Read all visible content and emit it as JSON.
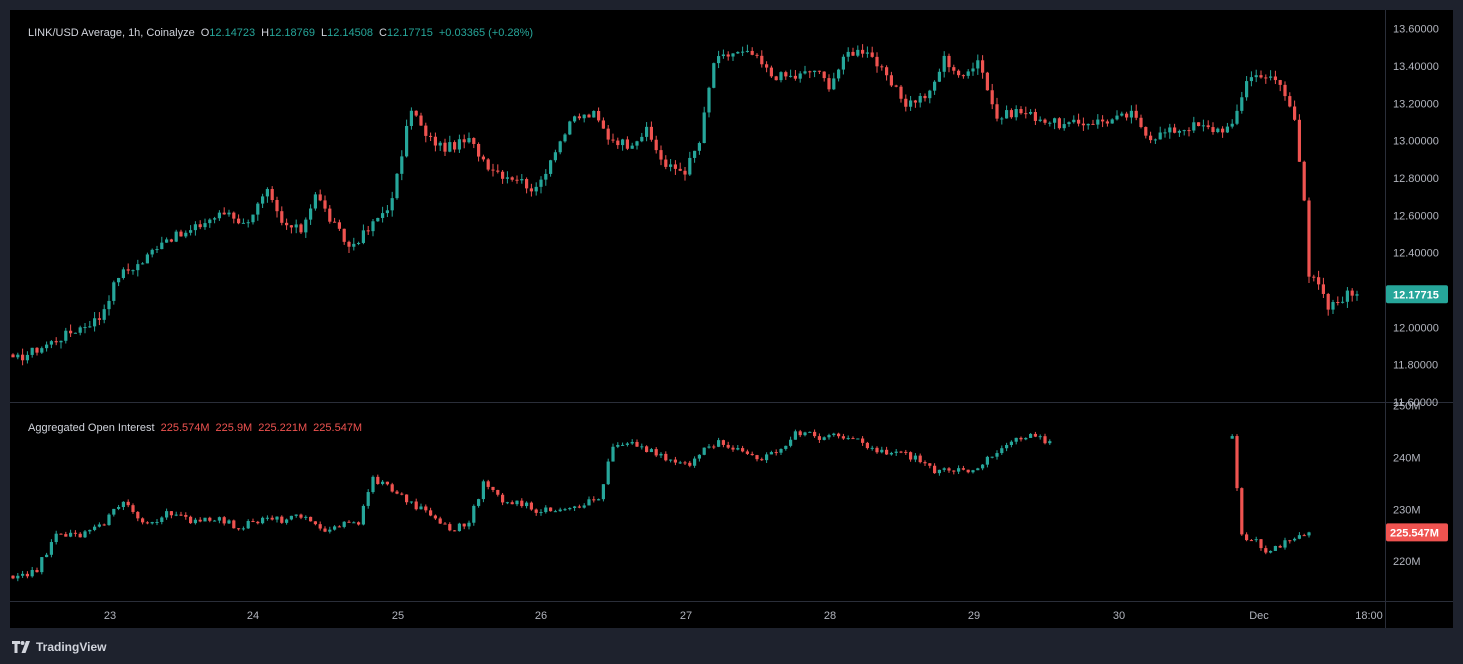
{
  "colors": {
    "up": "#26a69a",
    "down": "#ef5350",
    "text": "#d1d4dc",
    "axis_text": "#b2b5be",
    "border": "#2a2e39",
    "background": "#000000",
    "last_price_bg": "#26a69a",
    "last_oi_bg": "#ef5350"
  },
  "price_legend": {
    "title": "LINK/USD Average, 1h, Coinalyze",
    "open_key": "O",
    "open": "12.14723",
    "high_key": "H",
    "high": "12.18769",
    "low_key": "L",
    "low": "12.14508",
    "close_key": "C",
    "close": "12.17715",
    "change": "+0.03365 (+0.28%)"
  },
  "oi_legend": {
    "title": "Aggregated Open Interest",
    "v1": "225.574M",
    "v2": "225.9M",
    "v3": "225.221M",
    "v4": "225.547M"
  },
  "footer": {
    "brand": "TradingView"
  },
  "chart_data": [
    {
      "type": "candlestick",
      "title": "LINK/USD Average, 1h, Coinalyze",
      "interval": "1h",
      "x_ticks": [
        "23",
        "24",
        "25",
        "26",
        "27",
        "28",
        "29",
        "30",
        "Dec",
        "18:00"
      ],
      "y_ticks": [
        "13.60000",
        "13.40000",
        "13.20000",
        "13.00000",
        "12.80000",
        "12.60000",
        "12.40000",
        "12.20000",
        "12.00000",
        "11.80000",
        "11.60000"
      ],
      "ylim": [
        11.6,
        13.7
      ],
      "last_value_label": "12.17715",
      "x_start": "22 06:00",
      "bar_interval_hours": 1,
      "anchors_close": [
        [
          0,
          11.82
        ],
        [
          8,
          11.92
        ],
        [
          14,
          12.0
        ],
        [
          18,
          12.05
        ],
        [
          22,
          12.28
        ],
        [
          27,
          12.35
        ],
        [
          31,
          12.47
        ],
        [
          36,
          12.5
        ],
        [
          41,
          12.58
        ],
        [
          45,
          12.62
        ],
        [
          48,
          12.55
        ],
        [
          53,
          12.72
        ],
        [
          56,
          12.55
        ],
        [
          60,
          12.52
        ],
        [
          63,
          12.72
        ],
        [
          66,
          12.58
        ],
        [
          70,
          12.43
        ],
        [
          74,
          12.52
        ],
        [
          79,
          12.68
        ],
        [
          83,
          13.18
        ],
        [
          86,
          13.02
        ],
        [
          90,
          12.96
        ],
        [
          95,
          13.0
        ],
        [
          99,
          12.87
        ],
        [
          102,
          12.82
        ],
        [
          105,
          12.8
        ],
        [
          109,
          12.73
        ],
        [
          113,
          12.96
        ],
        [
          117,
          13.12
        ],
        [
          121,
          13.14
        ],
        [
          124,
          13.02
        ],
        [
          128,
          12.98
        ],
        [
          132,
          13.05
        ],
        [
          136,
          12.86
        ],
        [
          140,
          12.84
        ],
        [
          143,
          12.99
        ],
        [
          146,
          13.42
        ],
        [
          150,
          13.47
        ],
        [
          154,
          13.46
        ],
        [
          158,
          13.35
        ],
        [
          163,
          13.34
        ],
        [
          167,
          13.38
        ],
        [
          170,
          13.3
        ],
        [
          174,
          13.47
        ],
        [
          178,
          13.49
        ],
        [
          182,
          13.33
        ],
        [
          186,
          13.2
        ],
        [
          191,
          13.25
        ],
        [
          194,
          13.44
        ],
        [
          198,
          13.33
        ],
        [
          201,
          13.45
        ],
        [
          205,
          13.12
        ],
        [
          209,
          13.16
        ],
        [
          214,
          13.12
        ],
        [
          219,
          13.08
        ],
        [
          224,
          13.1
        ],
        [
          229,
          13.11
        ],
        [
          233,
          13.14
        ],
        [
          237,
          13.02
        ],
        [
          241,
          13.05
        ],
        [
          246,
          13.08
        ],
        [
          250,
          13.06
        ],
        [
          254,
          13.07
        ],
        [
          257,
          13.33
        ],
        [
          260,
          13.36
        ],
        [
          264,
          13.3
        ],
        [
          267,
          13.12
        ],
        [
          269,
          12.7
        ],
        [
          270,
          12.28
        ],
        [
          272,
          12.22
        ],
        [
          274,
          12.1
        ],
        [
          276,
          12.14
        ],
        [
          278,
          12.18
        ],
        [
          279,
          12.18
        ],
        [
          280,
          12.17715
        ]
      ]
    },
    {
      "type": "candlestick",
      "title": "Aggregated Open Interest",
      "interval": "1h",
      "y_ticks": [
        "250M",
        "240M",
        "230M",
        "220M"
      ],
      "ylim": [
        212.5,
        250.5
      ],
      "last_value_label": "225.547M",
      "x_start": "22 06:00",
      "bar_interval_hours": 1,
      "anchors_close": [
        [
          0,
          216
        ],
        [
          5,
          218.5
        ],
        [
          9,
          225
        ],
        [
          14,
          225
        ],
        [
          18,
          226.5
        ],
        [
          23,
          232
        ],
        [
          27,
          227
        ],
        [
          32,
          229
        ],
        [
          37,
          228
        ],
        [
          42,
          228.5
        ],
        [
          47,
          226.5
        ],
        [
          52,
          228
        ],
        [
          56,
          228
        ],
        [
          60,
          228.5
        ],
        [
          64,
          226
        ],
        [
          68,
          227
        ],
        [
          72,
          227.5
        ],
        [
          75,
          236
        ],
        [
          79,
          234
        ],
        [
          83,
          231
        ],
        [
          87,
          229
        ],
        [
          91,
          226
        ],
        [
          95,
          227.5
        ],
        [
          98,
          235
        ],
        [
          102,
          232
        ],
        [
          106,
          231
        ],
        [
          110,
          229.5
        ],
        [
          114,
          230.5
        ],
        [
          118,
          231
        ],
        [
          122,
          232
        ],
        [
          125,
          242
        ],
        [
          130,
          242.5
        ],
        [
          134,
          240.5
        ],
        [
          138,
          239
        ],
        [
          141,
          238.5
        ],
        [
          144,
          242.5
        ],
        [
          148,
          243
        ],
        [
          152,
          241
        ],
        [
          156,
          240
        ],
        [
          160,
          241
        ],
        [
          163,
          245
        ],
        [
          168,
          244
        ],
        [
          172,
          244
        ],
        [
          176,
          243
        ],
        [
          180,
          241
        ],
        [
          184,
          241
        ],
        [
          188,
          240
        ],
        [
          192,
          237.5
        ],
        [
          196,
          237
        ],
        [
          200,
          238
        ],
        [
          204,
          240
        ],
        [
          208,
          243
        ],
        [
          212,
          244
        ],
        [
          216,
          243
        ],
        [
          254,
          244
        ],
        [
          255,
          234
        ],
        [
          256,
          225
        ],
        [
          259,
          224
        ],
        [
          262,
          221.5
        ],
        [
          265,
          224
        ],
        [
          268,
          225.5
        ],
        [
          270,
          225.547
        ]
      ]
    }
  ]
}
